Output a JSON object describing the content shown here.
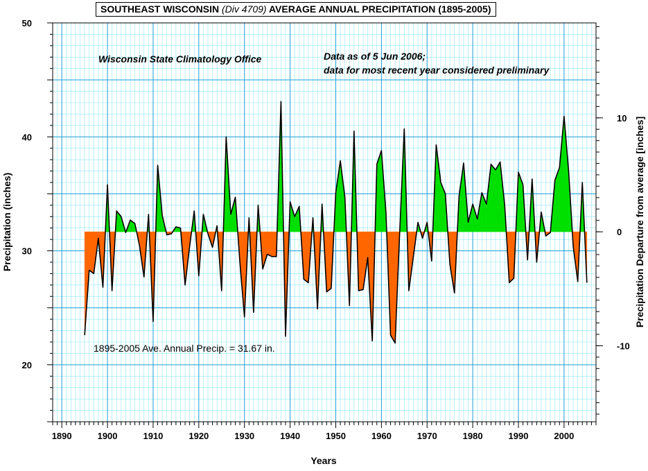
{
  "chart_data": {
    "type": "area",
    "title": {
      "prefix": "SOUTHEAST WISCONSIN ",
      "italic": "(Div 4709)",
      "suffix": " AVERAGE ANNUAL PRECIPITATION (1895-2005)"
    },
    "source_label": "Wisconsin State Climatology Office",
    "note_line1": "Data as of 5 Jun 2006;",
    "note_line2": "data for most recent year considered preliminary",
    "average_label": "1895-2005 Ave. Annual Precip. = 31.67 in.",
    "average": 31.67,
    "xlabel": "Years",
    "ylabel": "Precipitation  (inches)",
    "y2label": "Precipitation Departure from average [inches]",
    "xlim": [
      1888,
      2007
    ],
    "ylim": [
      15,
      50
    ],
    "y2lim": [
      -16.67,
      18.33
    ],
    "x_ticks": [
      1890,
      1900,
      1910,
      1920,
      1930,
      1940,
      1950,
      1960,
      1970,
      1980,
      1990,
      2000
    ],
    "y_ticks": [
      20,
      30,
      40,
      50
    ],
    "y2_ticks": [
      -10,
      0,
      10
    ],
    "grid": true,
    "colors": {
      "above": "#00e000",
      "below": "#ff6600",
      "grid_major": "#1fa0d8",
      "grid_minor": "#8fe8f0",
      "line": "#000000"
    },
    "series": [
      {
        "x": [
          1895,
          1896,
          1897,
          1898,
          1899,
          1900,
          1901,
          1902,
          1903,
          1904,
          1905,
          1906,
          1907,
          1908,
          1909,
          1910,
          1911,
          1912,
          1913,
          1914,
          1915,
          1916,
          1917,
          1918,
          1919,
          1920,
          1921,
          1922,
          1923,
          1924,
          1925,
          1926,
          1927,
          1928,
          1929,
          1930,
          1931,
          1932,
          1933,
          1934,
          1935,
          1936,
          1937,
          1938,
          1939,
          1940,
          1941,
          1942,
          1943,
          1944,
          1945,
          1946,
          1947,
          1948,
          1949,
          1950,
          1951,
          1952,
          1953,
          1954,
          1955,
          1956,
          1957,
          1958,
          1959,
          1960,
          1961,
          1962,
          1963,
          1964,
          1965,
          1966,
          1967,
          1968,
          1969,
          1970,
          1971,
          1972,
          1973,
          1974,
          1975,
          1976,
          1977,
          1978,
          1979,
          1980,
          1981,
          1982,
          1983,
          1984,
          1985,
          1986,
          1987,
          1988,
          1989,
          1990,
          1991,
          1992,
          1993,
          1994,
          1995,
          1996,
          1997,
          1998,
          1999,
          2000,
          2001,
          2002,
          2003,
          2004,
          2005
        ],
        "values": [
          22.6,
          28.3,
          28.0,
          31.1,
          26.8,
          35.8,
          26.5,
          33.5,
          33.0,
          31.6,
          32.7,
          32.4,
          30.5,
          27.7,
          33.2,
          23.8,
          37.5,
          33.1,
          31.4,
          31.5,
          32.1,
          32.0,
          27.0,
          30.4,
          33.5,
          27.8,
          33.2,
          31.5,
          30.3,
          32.2,
          26.5,
          40.0,
          33.2,
          34.7,
          29.0,
          24.2,
          32.9,
          24.6,
          34.0,
          28.4,
          29.7,
          29.5,
          29.5,
          43.1,
          22.5,
          34.3,
          33.0,
          33.9,
          27.5,
          27.2,
          32.9,
          24.9,
          34.1,
          26.4,
          26.7,
          35.1,
          37.9,
          34.7,
          25.2,
          40.5,
          26.5,
          26.6,
          29.4,
          22.1,
          37.6,
          38.8,
          33.3,
          22.6,
          21.9,
          31.6,
          40.7,
          26.5,
          29.5,
          32.5,
          31.1,
          32.5,
          29.1,
          39.3,
          36.0,
          35.0,
          28.8,
          26.3,
          34.8,
          37.7,
          32.5,
          34.1,
          32.8,
          35.1,
          34.1,
          37.6,
          37.1,
          37.8,
          34.0,
          27.2,
          27.6,
          36.9,
          35.8,
          29.2,
          36.3,
          29.0,
          33.4,
          31.3,
          31.6,
          36.2,
          37.3,
          41.8,
          37.0,
          30.4,
          27.3,
          36.0,
          27.2
        ]
      }
    ]
  }
}
